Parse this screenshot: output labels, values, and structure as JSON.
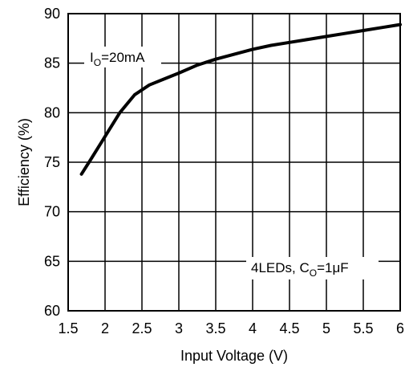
{
  "chart_data": {
    "type": "line",
    "title": "",
    "xlabel": "Input Voltage (V)",
    "ylabel": "Efficiency (%)",
    "xlim": [
      1.5,
      6
    ],
    "ylim": [
      60,
      90
    ],
    "xticks": [
      "1.5",
      "2",
      "2.5",
      "3",
      "3.5",
      "4",
      "4.5",
      "5",
      "5.5",
      "6"
    ],
    "yticks": [
      "60",
      "65",
      "70",
      "75",
      "80",
      "85",
      "90"
    ],
    "grid": true,
    "series": [
      {
        "x": [
          1.68,
          1.8,
          2.0,
          2.2,
          2.4,
          2.6,
          2.8,
          3.0,
          3.25,
          3.5,
          3.75,
          4.0,
          4.25,
          4.5,
          4.75,
          5.0,
          5.25,
          5.5,
          5.75,
          6.0
        ],
        "y": [
          73.8,
          75.2,
          77.6,
          80.0,
          81.8,
          82.8,
          83.4,
          84.0,
          84.8,
          85.4,
          85.9,
          86.4,
          86.8,
          87.1,
          87.4,
          87.7,
          88.0,
          88.3,
          88.6,
          88.9
        ]
      }
    ],
    "annotations": [
      {
        "main": "I",
        "sub": "O",
        "rest": "=20mA"
      },
      {
        "main": "4LEDs, C",
        "sub": "O",
        "rest": "=1μF"
      }
    ]
  }
}
